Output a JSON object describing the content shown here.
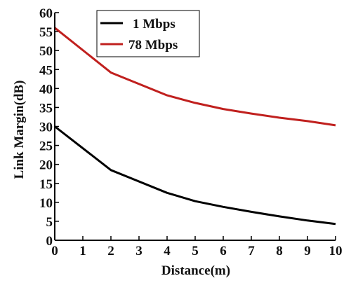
{
  "chart_data": {
    "type": "line",
    "title": "",
    "xlabel": "Distance(m)",
    "ylabel": "Link Margin(dB)",
    "xlim": [
      0,
      10
    ],
    "ylim": [
      0,
      60
    ],
    "x_ticks": [
      "0",
      "1",
      "2",
      "3",
      "4",
      "5",
      "6",
      "7",
      "8",
      "9",
      "10"
    ],
    "y_ticks": [
      "0",
      "5",
      "10",
      "15",
      "20",
      "25",
      "30",
      "35",
      "40",
      "45",
      "50",
      "55",
      "60"
    ],
    "grid": false,
    "legend_position": "top-left",
    "series": [
      {
        "name": "1 Mbps",
        "color": "#000000",
        "x": [
          0,
          2,
          4,
          5,
          6,
          7,
          8,
          9,
          10
        ],
        "y": [
          30,
          18.5,
          12.5,
          10.3,
          8.8,
          7.5,
          6.3,
          5.2,
          4.3
        ]
      },
      {
        "name": "78 Mbps",
        "color": "#c0201e",
        "x": [
          0,
          2,
          4,
          5,
          6,
          7,
          8,
          9,
          10
        ],
        "y": [
          56,
          44.2,
          38.2,
          36.2,
          34.6,
          33.4,
          32.3,
          31.4,
          30.3
        ]
      }
    ]
  }
}
